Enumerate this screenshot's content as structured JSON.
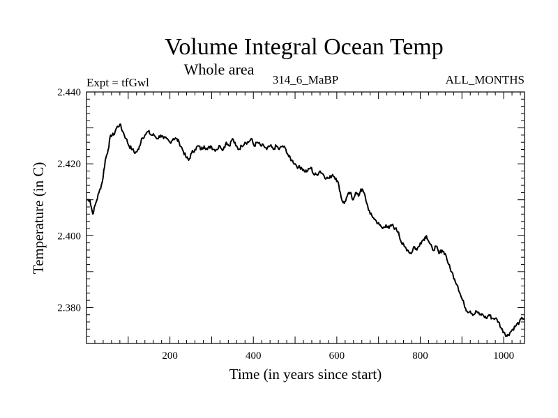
{
  "chart_data": {
    "type": "line",
    "title": "Volume Integral Ocean Temp",
    "subtitle": "Whole area",
    "header_left": "Expt = tfGwl",
    "header_center": "314_6_MaBP",
    "header_right": "ALL_MONTHS",
    "xlabel": "Time (in years since start)",
    "ylabel": "Temperature (in C)",
    "xlim": [
      0,
      1050
    ],
    "ylim": [
      2.37,
      2.44
    ],
    "x_ticks": [
      200,
      400,
      600,
      800,
      1000
    ],
    "y_ticks": [
      2.38,
      2.4,
      2.42,
      2.44
    ],
    "y_tick_labels": [
      "2.380",
      "2.400",
      "2.420",
      "2.440"
    ],
    "series": [
      {
        "name": "Volume Integral Ocean Temp",
        "color": "#000000",
        "points": [
          [
            0,
            2.41
          ],
          [
            8,
            2.41
          ],
          [
            15,
            2.406
          ],
          [
            22,
            2.409
          ],
          [
            30,
            2.412
          ],
          [
            38,
            2.415
          ],
          [
            45,
            2.421
          ],
          [
            52,
            2.424
          ],
          [
            58,
            2.428
          ],
          [
            65,
            2.428
          ],
          [
            72,
            2.43
          ],
          [
            80,
            2.431
          ],
          [
            87,
            2.429
          ],
          [
            95,
            2.427
          ],
          [
            102,
            2.425
          ],
          [
            110,
            2.424
          ],
          [
            117,
            2.423
          ],
          [
            125,
            2.424
          ],
          [
            132,
            2.427
          ],
          [
            140,
            2.428
          ],
          [
            148,
            2.429
          ],
          [
            155,
            2.428
          ],
          [
            162,
            2.428
          ],
          [
            170,
            2.427
          ],
          [
            178,
            2.428
          ],
          [
            185,
            2.427
          ],
          [
            192,
            2.427
          ],
          [
            200,
            2.426
          ],
          [
            208,
            2.427
          ],
          [
            215,
            2.427
          ],
          [
            222,
            2.426
          ],
          [
            230,
            2.424
          ],
          [
            238,
            2.422
          ],
          [
            245,
            2.421
          ],
          [
            252,
            2.423
          ],
          [
            260,
            2.424
          ],
          [
            268,
            2.425
          ],
          [
            275,
            2.424
          ],
          [
            282,
            2.425
          ],
          [
            290,
            2.424
          ],
          [
            298,
            2.425
          ],
          [
            305,
            2.424
          ],
          [
            312,
            2.424
          ],
          [
            320,
            2.425
          ],
          [
            328,
            2.424
          ],
          [
            335,
            2.426
          ],
          [
            342,
            2.425
          ],
          [
            350,
            2.427
          ],
          [
            358,
            2.425
          ],
          [
            365,
            2.424
          ],
          [
            372,
            2.425
          ],
          [
            380,
            2.426
          ],
          [
            388,
            2.426
          ],
          [
            395,
            2.427
          ],
          [
            402,
            2.425
          ],
          [
            410,
            2.426
          ],
          [
            418,
            2.425
          ],
          [
            425,
            2.425
          ],
          [
            432,
            2.424
          ],
          [
            440,
            2.425
          ],
          [
            448,
            2.424
          ],
          [
            455,
            2.425
          ],
          [
            462,
            2.424
          ],
          [
            470,
            2.425
          ],
          [
            478,
            2.424
          ],
          [
            485,
            2.422
          ],
          [
            492,
            2.421
          ],
          [
            500,
            2.42
          ],
          [
            508,
            2.419
          ],
          [
            515,
            2.419
          ],
          [
            522,
            2.418
          ],
          [
            530,
            2.418
          ],
          [
            538,
            2.419
          ],
          [
            545,
            2.417
          ],
          [
            552,
            2.417
          ],
          [
            560,
            2.418
          ],
          [
            568,
            2.417
          ],
          [
            575,
            2.416
          ],
          [
            582,
            2.416
          ],
          [
            590,
            2.417
          ],
          [
            598,
            2.416
          ],
          [
            605,
            2.414
          ],
          [
            612,
            2.41
          ],
          [
            618,
            2.409
          ],
          [
            625,
            2.411
          ],
          [
            632,
            2.412
          ],
          [
            638,
            2.41
          ],
          [
            645,
            2.412
          ],
          [
            652,
            2.411
          ],
          [
            658,
            2.413
          ],
          [
            665,
            2.412
          ],
          [
            672,
            2.409
          ],
          [
            680,
            2.406
          ],
          [
            688,
            2.405
          ],
          [
            695,
            2.404
          ],
          [
            702,
            2.403
          ],
          [
            710,
            2.402
          ],
          [
            718,
            2.403
          ],
          [
            725,
            2.402
          ],
          [
            732,
            2.403
          ],
          [
            740,
            2.402
          ],
          [
            748,
            2.401
          ],
          [
            755,
            2.398
          ],
          [
            762,
            2.397
          ],
          [
            770,
            2.396
          ],
          [
            778,
            2.395
          ],
          [
            785,
            2.397
          ],
          [
            792,
            2.396
          ],
          [
            800,
            2.398
          ],
          [
            808,
            2.399
          ],
          [
            815,
            2.4
          ],
          [
            822,
            2.398
          ],
          [
            830,
            2.396
          ],
          [
            838,
            2.397
          ],
          [
            845,
            2.395
          ],
          [
            852,
            2.396
          ],
          [
            860,
            2.395
          ],
          [
            868,
            2.392
          ],
          [
            875,
            2.39
          ],
          [
            882,
            2.388
          ],
          [
            890,
            2.386
          ],
          [
            898,
            2.383
          ],
          [
            905,
            2.381
          ],
          [
            912,
            2.379
          ],
          [
            920,
            2.379
          ],
          [
            928,
            2.378
          ],
          [
            935,
            2.379
          ],
          [
            942,
            2.378
          ],
          [
            950,
            2.378
          ],
          [
            958,
            2.377
          ],
          [
            965,
            2.378
          ],
          [
            972,
            2.377
          ],
          [
            980,
            2.377
          ],
          [
            988,
            2.376
          ],
          [
            995,
            2.374
          ],
          [
            1002,
            2.373
          ],
          [
            1008,
            2.372
          ],
          [
            1015,
            2.373
          ],
          [
            1022,
            2.374
          ],
          [
            1030,
            2.375
          ],
          [
            1038,
            2.376
          ],
          [
            1045,
            2.377
          ],
          [
            1050,
            2.377
          ]
        ]
      }
    ]
  }
}
